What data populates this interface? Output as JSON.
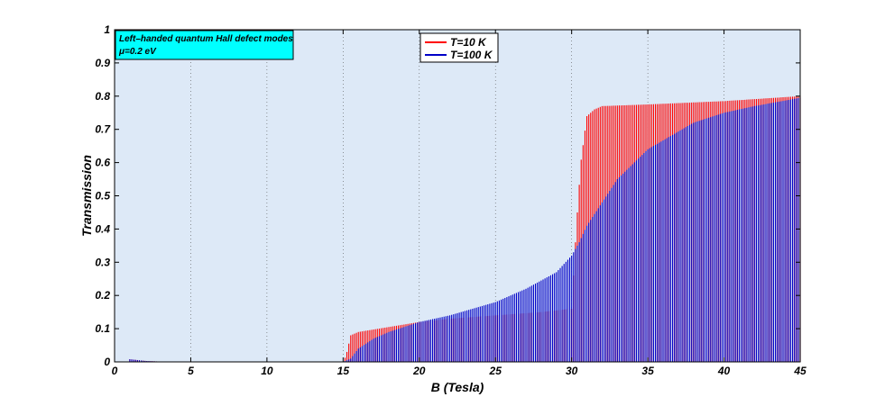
{
  "chart_data": {
    "type": "bar",
    "xlabel": "B (Tesla)",
    "ylabel": "Transmission",
    "xlim": [
      0,
      45
    ],
    "ylim": [
      0,
      1
    ],
    "xticks": [
      "0",
      "5",
      "10",
      "15",
      "20",
      "25",
      "30",
      "35",
      "40",
      "45"
    ],
    "yticks": [
      "0",
      "0.1",
      "0.2",
      "0.3",
      "0.4",
      "0.5",
      "0.6",
      "0.7",
      "0.8",
      "0.9",
      "1"
    ],
    "grid": "vertical dotted",
    "annotation": {
      "line1": "Left–handed quantum Hall defect modes",
      "line2": "μ=0.2 eV"
    },
    "legend_position": "top",
    "series": [
      {
        "name": "T=10 K",
        "color": "#ff0000",
        "x": [
          1,
          2,
          3,
          5,
          10,
          15,
          15.2,
          15.5,
          16,
          18,
          20,
          22,
          25,
          28,
          30,
          30.3,
          30.6,
          31,
          31.5,
          32,
          35,
          40,
          45
        ],
        "values": [
          0.008,
          0.003,
          0.001,
          0,
          0,
          0,
          0.02,
          0.08,
          0.09,
          0.105,
          0.12,
          0.13,
          0.14,
          0.15,
          0.16,
          0.4,
          0.6,
          0.74,
          0.76,
          0.77,
          0.775,
          0.785,
          0.8
        ]
      },
      {
        "name": "T=100 K",
        "color": "#0000c8",
        "x": [
          1,
          2,
          3,
          5,
          10,
          15,
          15.5,
          16,
          17,
          18,
          20,
          22,
          25,
          27,
          29,
          30,
          30.5,
          31,
          32,
          33,
          35,
          38,
          40,
          42,
          45
        ],
        "values": [
          0.008,
          0.003,
          0.001,
          0,
          0,
          0,
          0.01,
          0.04,
          0.07,
          0.09,
          0.12,
          0.14,
          0.18,
          0.22,
          0.27,
          0.32,
          0.36,
          0.41,
          0.48,
          0.55,
          0.64,
          0.72,
          0.75,
          0.77,
          0.795
        ]
      }
    ]
  }
}
